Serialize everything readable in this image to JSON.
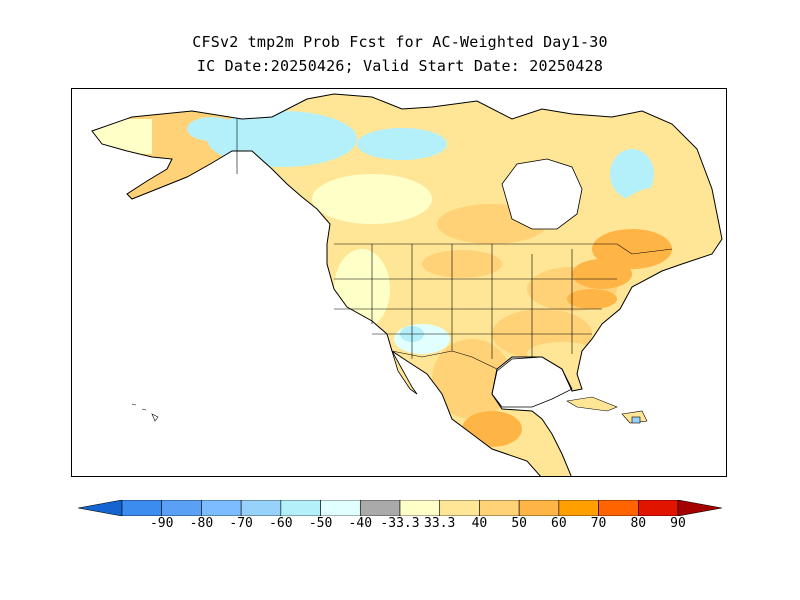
{
  "title": {
    "line1": "CFSv2 tmp2m Prob Fcst for AC-Weighted Day1-30",
    "line2": "IC Date:20250426; Valid Start Date: 20250428"
  },
  "colorbar": {
    "colors": [
      "#1464d2",
      "#3c8cf0",
      "#5aa0f5",
      "#7dbcff",
      "#96d2fa",
      "#b4f0fa",
      "#e1ffff",
      "#aaaaaa",
      "#ffffc8",
      "#ffe696",
      "#ffd278",
      "#ffb446",
      "#ffa000",
      "#ff6400",
      "#e11400",
      "#a50000"
    ],
    "tick_labels": [
      "-90",
      "-80",
      "-70",
      "-60",
      "-50",
      "-40",
      "-33.3",
      "33.3",
      "40",
      "50",
      "60",
      "70",
      "80",
      "90"
    ]
  },
  "map": {
    "region": "North America",
    "land_outline_color": "#000000",
    "ocean_color": "#ffffff"
  }
}
